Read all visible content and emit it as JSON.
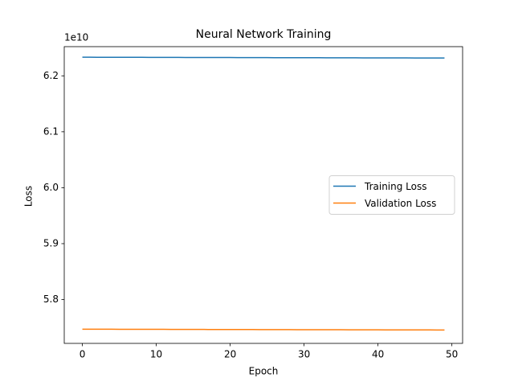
{
  "chart_data": {
    "type": "line",
    "title": "Neural Network Training",
    "xlabel": "Epoch",
    "ylabel": "Loss",
    "y_offset_label": "1e10",
    "x": [
      0,
      1,
      2,
      3,
      4,
      5,
      6,
      7,
      8,
      9,
      10,
      11,
      12,
      13,
      14,
      15,
      16,
      17,
      18,
      19,
      20,
      21,
      22,
      23,
      24,
      25,
      26,
      27,
      28,
      29,
      30,
      31,
      32,
      33,
      34,
      35,
      36,
      37,
      38,
      39,
      40,
      41,
      42,
      43,
      44,
      45,
      46,
      47,
      48,
      49
    ],
    "series": [
      {
        "name": "Training Loss",
        "color": "#1f77b4",
        "values": [
          6.2333,
          6.23327,
          6.23324,
          6.23321,
          6.23318,
          6.23315,
          6.23312,
          6.23309,
          6.23306,
          6.23303,
          6.233,
          6.23297,
          6.23294,
          6.23291,
          6.23288,
          6.23285,
          6.23282,
          6.23279,
          6.23276,
          6.23273,
          6.2327,
          6.23267,
          6.23264,
          6.23261,
          6.23258,
          6.23255,
          6.23252,
          6.23249,
          6.23246,
          6.23243,
          6.2324,
          6.23237,
          6.23234,
          6.23231,
          6.23228,
          6.23225,
          6.23222,
          6.23219,
          6.23216,
          6.23213,
          6.2321,
          6.23207,
          6.23204,
          6.23201,
          6.23198,
          6.23195,
          6.23192,
          6.23189,
          6.23186,
          6.23183
        ]
      },
      {
        "name": "Validation Loss",
        "color": "#ff7f0e",
        "values": [
          5.7471,
          5.74707,
          5.74704,
          5.74701,
          5.74698,
          5.74695,
          5.74692,
          5.74689,
          5.74686,
          5.74683,
          5.7468,
          5.74677,
          5.74674,
          5.74671,
          5.74668,
          5.74665,
          5.74662,
          5.74659,
          5.74656,
          5.74653,
          5.7465,
          5.74647,
          5.74644,
          5.74641,
          5.74638,
          5.74635,
          5.74632,
          5.74629,
          5.74626,
          5.74623,
          5.7462,
          5.74617,
          5.74614,
          5.74611,
          5.74608,
          5.74605,
          5.74602,
          5.74599,
          5.74596,
          5.74593,
          5.7459,
          5.74587,
          5.74584,
          5.74581,
          5.74578,
          5.74575,
          5.74572,
          5.74569,
          5.74566,
          5.74563
        ]
      }
    ],
    "xlim": [
      -2.45,
      51.45
    ],
    "xticks": [
      0,
      10,
      20,
      30,
      40,
      50
    ],
    "ylim": [
      5.7217,
      6.2522
    ],
    "yticks": [
      5.8,
      5.9,
      {
        "value": 6,
        "label": "6.0"
      },
      6.1,
      6.2
    ],
    "grid": false,
    "legend": "center right"
  }
}
